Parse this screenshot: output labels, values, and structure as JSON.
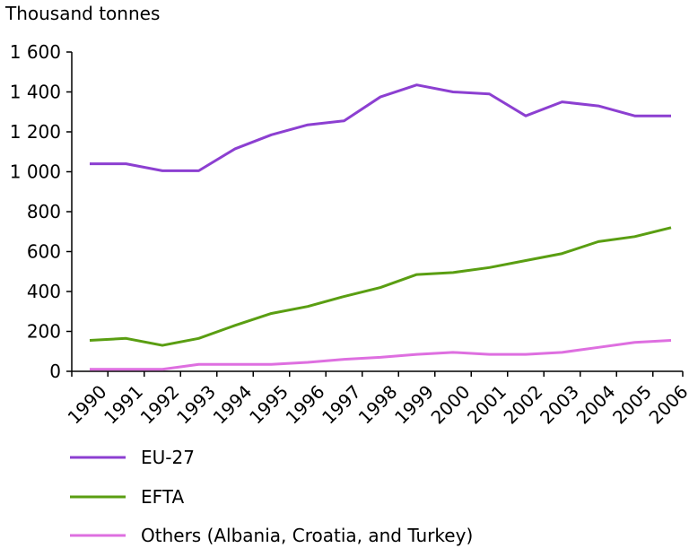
{
  "chart_data": {
    "type": "line",
    "title": "",
    "ylabel": "Thousand tonnes",
    "xlabel": "",
    "ylim": [
      0,
      1600
    ],
    "yticks": [
      0,
      200,
      400,
      600,
      800,
      1000,
      1200,
      1400,
      1600
    ],
    "ytick_labels": [
      "0",
      "200",
      "400",
      "600",
      "800",
      "1 000",
      "1 200",
      "1 400",
      "1 600"
    ],
    "categories": [
      "1990",
      "1991",
      "1992",
      "1993",
      "1994",
      "1995",
      "1996",
      "1997",
      "1998",
      "1999",
      "2000",
      "2001",
      "2002",
      "2003",
      "2004",
      "2005",
      "2006"
    ],
    "grid": false,
    "legend_position": "bottom",
    "series": [
      {
        "name": "EU-27",
        "color": "#8c3fd1",
        "values": [
          1040,
          1040,
          1005,
          1005,
          1115,
          1185,
          1235,
          1255,
          1375,
          1435,
          1400,
          1390,
          1280,
          1350,
          1330,
          1280,
          1280
        ]
      },
      {
        "name": "EFTA",
        "color": "#5a9e12",
        "values": [
          155,
          165,
          130,
          165,
          230,
          290,
          325,
          375,
          420,
          485,
          495,
          520,
          555,
          590,
          650,
          675,
          720
        ]
      },
      {
        "name": "Others (Albania, Croatia, and Turkey)",
        "color": "#de6fe0",
        "values": [
          10,
          10,
          10,
          35,
          35,
          35,
          45,
          60,
          70,
          85,
          95,
          85,
          85,
          95,
          120,
          145,
          155
        ]
      }
    ]
  }
}
